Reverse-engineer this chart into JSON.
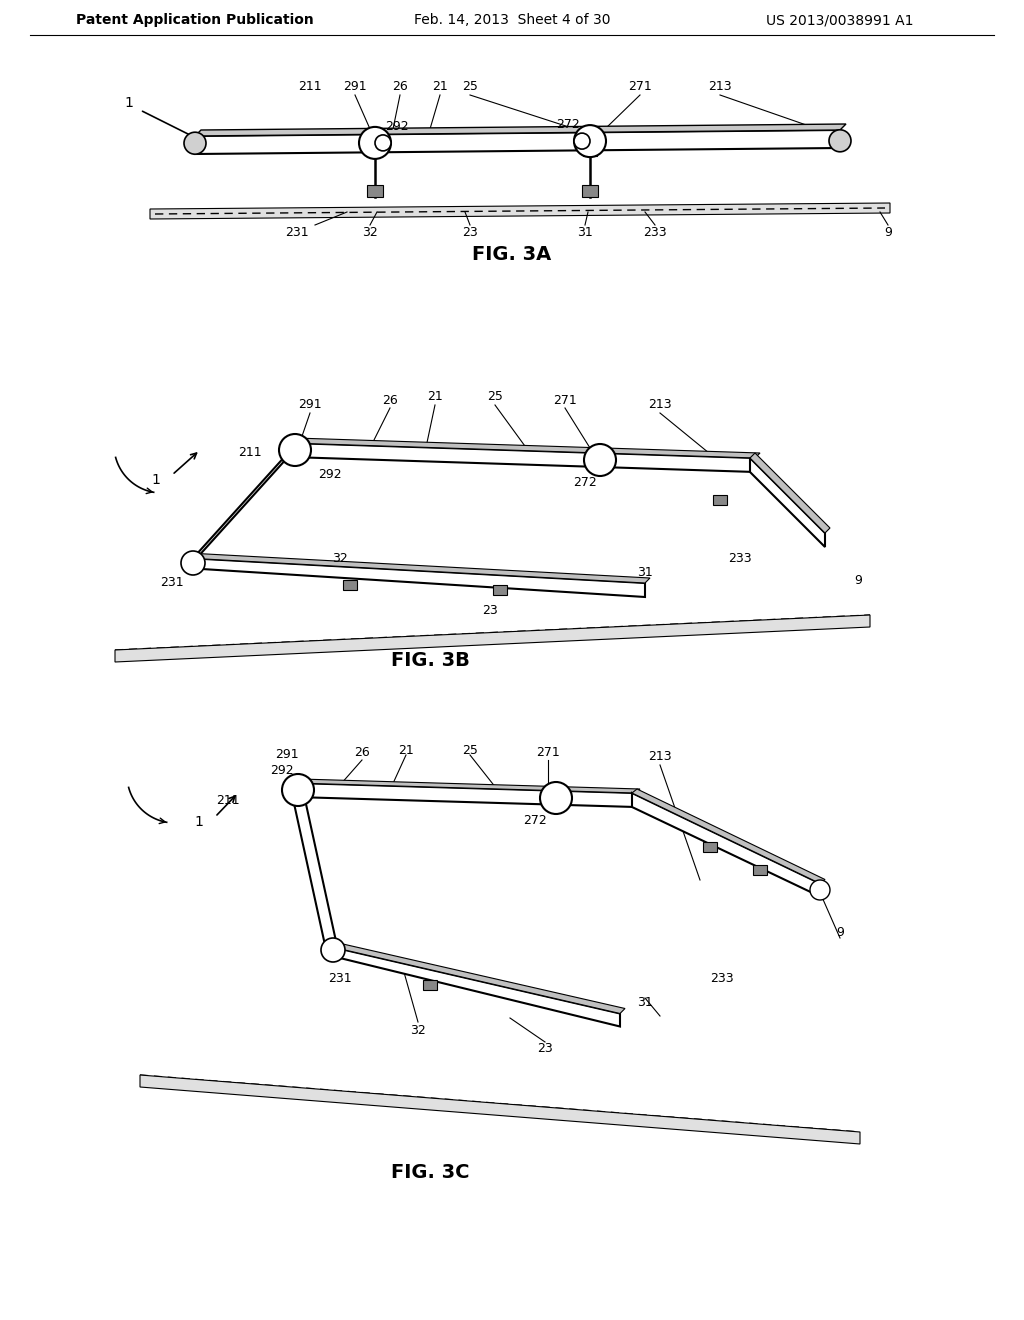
{
  "bg_color": "#ffffff",
  "font_color": "#000000",
  "line_color": "#000000",
  "header_left": "Patent Application Publication",
  "header_mid": "Feb. 14, 2013  Sheet 4 of 30",
  "header_right": "US 2013/0038991 A1"
}
